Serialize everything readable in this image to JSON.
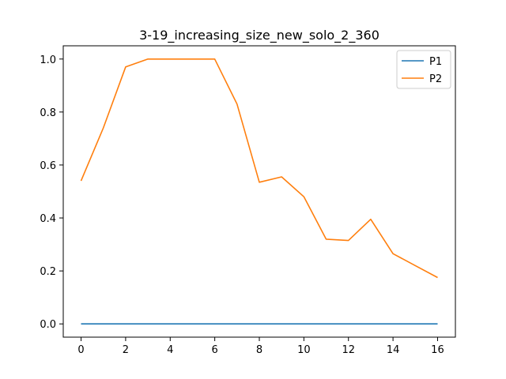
{
  "chart_data": {
    "type": "line",
    "title": "3-19_increasing_size_new_solo_2_360",
    "xlabel": "",
    "ylabel": "",
    "xlim": [
      -0.8,
      16.8
    ],
    "ylim": [
      -0.05,
      1.05
    ],
    "xticks": [
      0,
      2,
      4,
      6,
      8,
      10,
      12,
      14,
      16
    ],
    "yticks": [
      0.0,
      0.2,
      0.4,
      0.6,
      0.8,
      1.0
    ],
    "ytick_labels": [
      "0.0",
      "0.2",
      "0.4",
      "0.6",
      "0.8",
      "1.0"
    ],
    "grid": false,
    "legend_position": "top-right",
    "x": [
      0,
      1,
      2,
      3,
      4,
      5,
      6,
      7,
      8,
      9,
      10,
      11,
      12,
      13,
      14,
      15,
      16
    ],
    "series": [
      {
        "name": "P1",
        "color": "#1f77b4",
        "values": [
          0,
          0,
          0,
          0,
          0,
          0,
          0,
          0,
          0,
          0,
          0,
          0,
          0,
          0,
          0,
          0,
          0
        ]
      },
      {
        "name": "P2",
        "color": "#ff7f0e",
        "values": [
          0.54,
          0.74,
          0.97,
          1.0,
          1.0,
          1.0,
          1.0,
          0.83,
          0.535,
          0.555,
          0.48,
          0.32,
          0.315,
          0.395,
          0.265,
          0.22,
          0.175
        ]
      }
    ]
  }
}
